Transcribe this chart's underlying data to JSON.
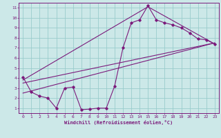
{
  "xlabel": "Windchill (Refroidissement éolien,°C)",
  "bg_color": "#cce8e8",
  "line_color": "#7b1a7b",
  "grid_color": "#99cccc",
  "xlim": [
    -0.5,
    23.5
  ],
  "ylim": [
    0.5,
    11.5
  ],
  "xticks": [
    0,
    1,
    2,
    3,
    4,
    5,
    6,
    7,
    8,
    9,
    10,
    11,
    12,
    13,
    14,
    15,
    16,
    17,
    18,
    19,
    20,
    21,
    22,
    23
  ],
  "yticks": [
    1,
    2,
    3,
    4,
    5,
    6,
    7,
    8,
    9,
    10,
    11
  ],
  "series1_x": [
    0,
    1,
    2,
    3,
    4,
    5,
    6,
    7,
    8,
    9,
    10,
    11,
    12,
    13,
    14,
    15,
    16,
    17,
    18,
    19,
    20,
    21,
    22,
    23
  ],
  "series1_y": [
    4.1,
    2.6,
    2.2,
    2.0,
    1.0,
    3.0,
    3.1,
    0.85,
    0.9,
    1.0,
    1.0,
    3.2,
    7.0,
    9.5,
    9.8,
    11.2,
    9.8,
    9.5,
    9.3,
    9.0,
    8.5,
    7.9,
    7.8,
    7.4
  ],
  "line2_x": [
    0,
    23
  ],
  "line2_y": [
    2.5,
    7.5
  ],
  "line3_x": [
    0,
    23
  ],
  "line3_y": [
    3.5,
    7.5
  ],
  "line4_x": [
    0,
    15,
    23
  ],
  "line4_y": [
    3.8,
    11.1,
    7.4
  ]
}
